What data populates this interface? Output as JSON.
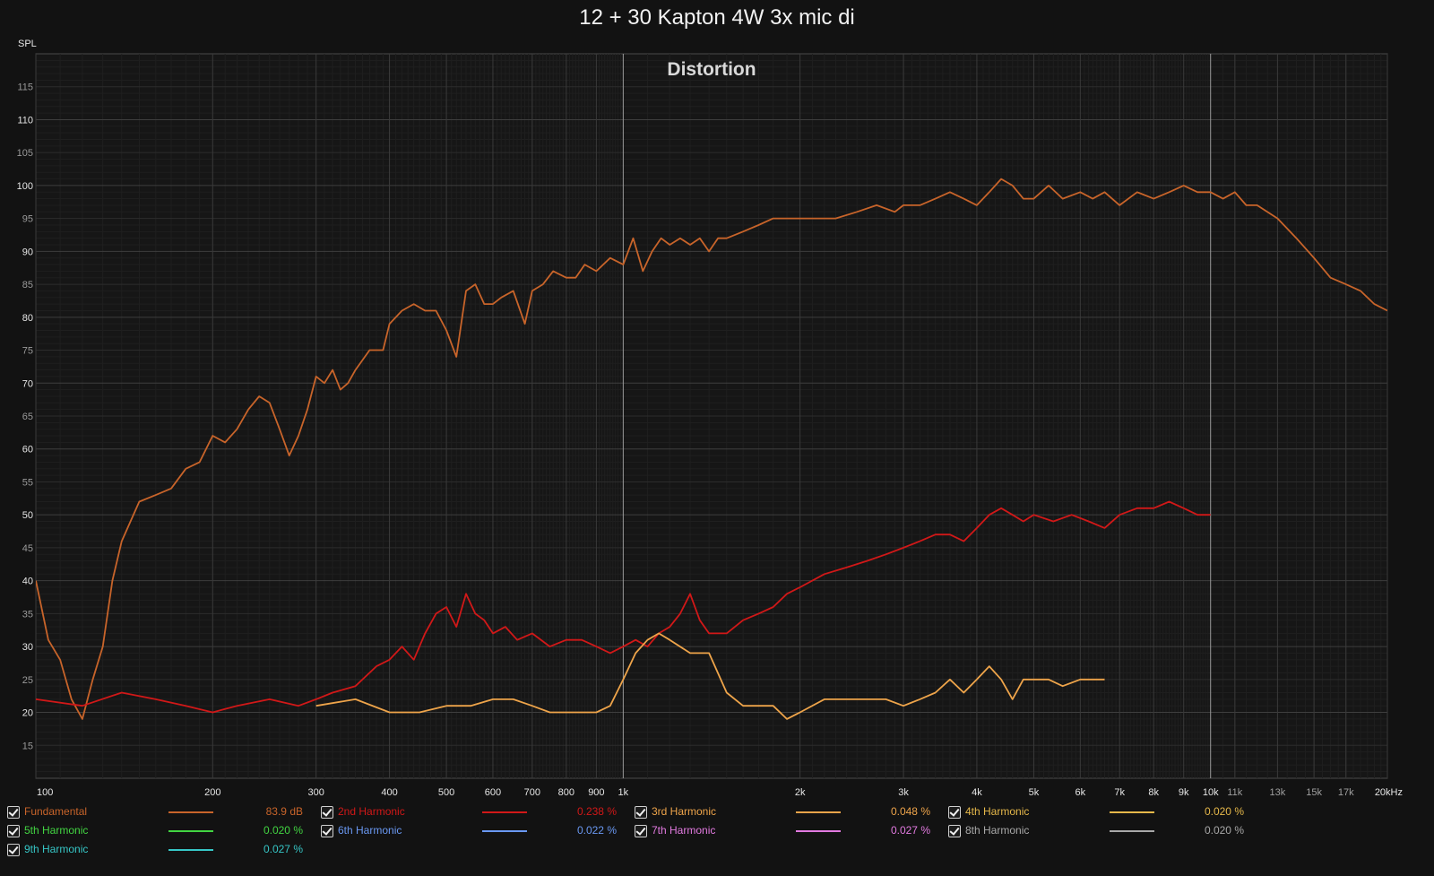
{
  "title": "12 + 30 Kapton 4W 3x mic di",
  "chart_data": {
    "type": "line",
    "title": "Distortion",
    "ylabel": "SPL",
    "xscale": "log",
    "xlim": [
      100,
      20000
    ],
    "ylim": [
      10,
      120
    ],
    "y_ticks": [
      15,
      20,
      25,
      30,
      35,
      40,
      45,
      50,
      55,
      60,
      65,
      70,
      75,
      80,
      85,
      90,
      95,
      100,
      105,
      110,
      115
    ],
    "y_ticks_major": [
      20,
      30,
      40,
      50,
      60,
      70,
      80,
      90,
      100,
      110
    ],
    "x_ticks": [
      {
        "v": 100,
        "label": "100"
      },
      {
        "v": 200,
        "label": "200"
      },
      {
        "v": 300,
        "label": "300"
      },
      {
        "v": 400,
        "label": "400"
      },
      {
        "v": 500,
        "label": "500"
      },
      {
        "v": 600,
        "label": "600"
      },
      {
        "v": 700,
        "label": "700"
      },
      {
        "v": 800,
        "label": "800"
      },
      {
        "v": 900,
        "label": "900"
      },
      {
        "v": 1000,
        "label": "1k"
      },
      {
        "v": 2000,
        "label": "2k"
      },
      {
        "v": 3000,
        "label": "3k"
      },
      {
        "v": 4000,
        "label": "4k"
      },
      {
        "v": 5000,
        "label": "5k"
      },
      {
        "v": 6000,
        "label": "6k"
      },
      {
        "v": 7000,
        "label": "7k"
      },
      {
        "v": 8000,
        "label": "8k"
      },
      {
        "v": 9000,
        "label": "9k"
      },
      {
        "v": 10000,
        "label": "10k"
      },
      {
        "v": 11000,
        "label": "11k"
      },
      {
        "v": 13000,
        "label": "13k"
      },
      {
        "v": 15000,
        "label": "15k"
      },
      {
        "v": 17000,
        "label": "17k"
      },
      {
        "v": 20000,
        "label": "20kHz"
      }
    ],
    "grid": true,
    "legend_position": "bottom",
    "series": [
      {
        "name": "Fundamental",
        "color": "#c8642a",
        "value": "83.9 dB",
        "x": [
          100,
          105,
          110,
          115,
          120,
          125,
          130,
          135,
          140,
          150,
          160,
          170,
          180,
          190,
          200,
          210,
          220,
          230,
          240,
          250,
          260,
          270,
          280,
          290,
          300,
          310,
          320,
          330,
          340,
          350,
          370,
          390,
          400,
          420,
          440,
          460,
          480,
          500,
          520,
          540,
          560,
          580,
          600,
          620,
          650,
          680,
          700,
          730,
          760,
          800,
          830,
          860,
          900,
          950,
          1000,
          1040,
          1080,
          1120,
          1160,
          1200,
          1250,
          1300,
          1350,
          1400,
          1450,
          1500,
          1600,
          1700,
          1800,
          1900,
          2000,
          2100,
          2200,
          2300,
          2500,
          2700,
          2900,
          3000,
          3200,
          3400,
          3600,
          3800,
          4000,
          4200,
          4400,
          4600,
          4800,
          5000,
          5300,
          5600,
          6000,
          6300,
          6600,
          7000,
          7500,
          8000,
          8500,
          9000,
          9500,
          10000,
          10500,
          11000,
          11500,
          12000,
          13000,
          14000,
          15000,
          16000,
          17000,
          18000,
          19000,
          20000
        ],
        "y": [
          40,
          31,
          28,
          22,
          19,
          25,
          30,
          40,
          46,
          52,
          53,
          54,
          57,
          58,
          62,
          61,
          63,
          66,
          68,
          67,
          63,
          59,
          62,
          66,
          71,
          70,
          72,
          69,
          70,
          72,
          75,
          75,
          79,
          81,
          82,
          81,
          81,
          78,
          74,
          84,
          85,
          82,
          82,
          83,
          84,
          79,
          84,
          85,
          87,
          86,
          86,
          88,
          87,
          89,
          88,
          92,
          87,
          90,
          92,
          91,
          92,
          91,
          92,
          90,
          92,
          92,
          93,
          94,
          95,
          95,
          95,
          95,
          95,
          95,
          96,
          97,
          96,
          97,
          97,
          98,
          99,
          98,
          97,
          99,
          101,
          100,
          98,
          98,
          100,
          98,
          99,
          98,
          99,
          97,
          99,
          98,
          99,
          100,
          99,
          99,
          98,
          99,
          97,
          97,
          95,
          92,
          89,
          86,
          85,
          84,
          82,
          81
        ]
      },
      {
        "name": "2nd Harmonic",
        "color": "#d11818",
        "value": "0.238 %",
        "x": [
          100,
          120,
          140,
          160,
          180,
          200,
          220,
          250,
          280,
          300,
          320,
          350,
          380,
          400,
          420,
          440,
          460,
          480,
          500,
          520,
          540,
          560,
          580,
          600,
          630,
          660,
          700,
          750,
          800,
          850,
          900,
          950,
          1000,
          1050,
          1100,
          1150,
          1200,
          1250,
          1300,
          1350,
          1400,
          1500,
          1600,
          1700,
          1800,
          1900,
          2000,
          2200,
          2400,
          2600,
          2800,
          3000,
          3200,
          3400,
          3600,
          3800,
          4000,
          4200,
          4400,
          4600,
          4800,
          5000,
          5400,
          5800,
          6200,
          6600,
          7000,
          7500,
          8000,
          8500,
          9000,
          9500,
          10000
        ],
        "y": [
          22,
          21,
          23,
          22,
          21,
          20,
          21,
          22,
          21,
          22,
          23,
          24,
          27,
          28,
          30,
          28,
          32,
          35,
          36,
          33,
          38,
          35,
          34,
          32,
          33,
          31,
          32,
          30,
          31,
          31,
          30,
          29,
          30,
          31,
          30,
          32,
          33,
          35,
          38,
          34,
          32,
          32,
          34,
          35,
          36,
          38,
          39,
          41,
          42,
          43,
          44,
          45,
          46,
          47,
          47,
          46,
          48,
          50,
          51,
          50,
          49,
          50,
          49,
          50,
          49,
          48,
          50,
          51,
          51,
          52,
          51,
          50,
          50
        ]
      },
      {
        "name": "3rd Harmonic",
        "color": "#eea44a",
        "value": "0.048 %",
        "x": [
          300,
          350,
          400,
          450,
          500,
          550,
          600,
          650,
          700,
          750,
          800,
          850,
          900,
          950,
          1000,
          1050,
          1100,
          1150,
          1200,
          1300,
          1400,
          1500,
          1600,
          1700,
          1800,
          1900,
          2000,
          2200,
          2400,
          2600,
          2800,
          3000,
          3200,
          3400,
          3600,
          3800,
          4000,
          4200,
          4400,
          4600,
          4800,
          5000,
          5300,
          5600,
          6000,
          6300,
          6600
        ],
        "y": [
          21,
          22,
          20,
          20,
          21,
          21,
          22,
          22,
          21,
          20,
          20,
          20,
          20,
          21,
          25,
          29,
          31,
          32,
          31,
          29,
          29,
          23,
          21,
          21,
          21,
          19,
          20,
          22,
          22,
          22,
          22,
          21,
          22,
          23,
          25,
          23,
          25,
          27,
          25,
          22,
          25,
          25,
          25,
          24,
          25,
          25,
          25
        ]
      },
      {
        "name": "4th Harmonic",
        "color": "#e6b84a",
        "value": "0.020 %",
        "x": [],
        "y": []
      },
      {
        "name": "5th Harmonic",
        "color": "#42d542",
        "value": "0.020 %",
        "x": [],
        "y": []
      },
      {
        "name": "6th Harmonic",
        "color": "#6a98f2",
        "value": "0.022 %",
        "x": [],
        "y": []
      },
      {
        "name": "7th Harmonic",
        "color": "#e27ae0",
        "value": "0.027 %",
        "x": [],
        "y": []
      },
      {
        "name": "8th Harmonic",
        "color": "#a8a8a8",
        "value": "0.020 %",
        "x": [],
        "y": []
      },
      {
        "name": "9th Harmonic",
        "color": "#36c6c6",
        "value": "0.027 %",
        "x": [],
        "y": []
      }
    ]
  }
}
